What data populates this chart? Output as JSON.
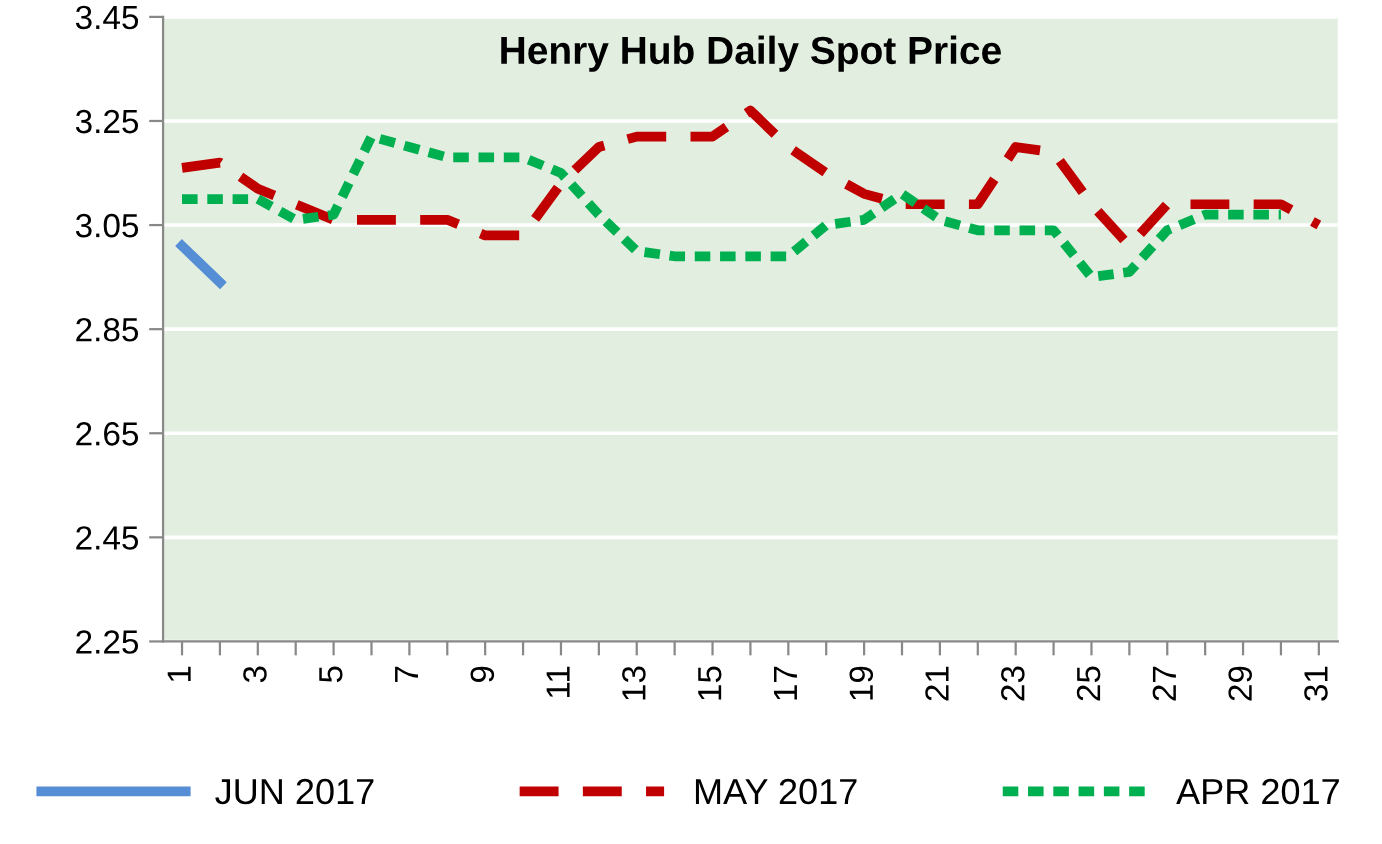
{
  "chart_data": {
    "type": "line",
    "title": "Henry Hub Daily Spot Price",
    "categories": [
      "1",
      null,
      "3",
      null,
      "5",
      null,
      "7",
      null,
      "9",
      null,
      "11",
      null,
      "13",
      null,
      "15",
      null,
      "17",
      null,
      "19",
      null,
      "21",
      null,
      "23",
      null,
      "25",
      null,
      "27",
      null,
      "29",
      null,
      "31"
    ],
    "series": [
      {
        "name": "JUN 2017",
        "color": "#558ed5",
        "line_style": "solid",
        "values": [
          3.01,
          2.94,
          null,
          null,
          null,
          null,
          null,
          null,
          null,
          null,
          null,
          null,
          null,
          null,
          null,
          null,
          null,
          null,
          null,
          null,
          null,
          null,
          null,
          null,
          null,
          null,
          null,
          null,
          null,
          null,
          null
        ]
      },
      {
        "name": "MAY 2017",
        "color": "#c00000",
        "line_style": "dashed",
        "values": [
          3.16,
          3.17,
          3.12,
          3.09,
          3.06,
          3.06,
          3.06,
          3.06,
          3.03,
          3.03,
          3.13,
          3.2,
          3.22,
          3.22,
          3.22,
          3.27,
          3.2,
          3.15,
          3.11,
          3.09,
          3.09,
          3.09,
          3.2,
          3.19,
          3.09,
          3.01,
          3.09,
          3.09,
          3.09,
          3.09,
          3.05
        ]
      },
      {
        "name": "APR 2017",
        "color": "#00b050",
        "line_style": "dotted",
        "values": [
          3.1,
          3.1,
          3.1,
          3.06,
          3.07,
          3.22,
          3.2,
          3.18,
          3.18,
          3.18,
          3.15,
          3.07,
          3.0,
          2.99,
          2.99,
          2.99,
          2.99,
          3.05,
          3.06,
          3.11,
          3.06,
          3.04,
          3.04,
          3.04,
          2.95,
          2.96,
          3.04,
          3.07,
          3.07,
          3.07,
          null
        ]
      }
    ],
    "ylim": [
      2.25,
      3.45
    ],
    "yticks": [
      2.25,
      2.45,
      2.65,
      2.85,
      3.05,
      3.25,
      3.45
    ],
    "grid": "y",
    "legend": "bottom"
  }
}
